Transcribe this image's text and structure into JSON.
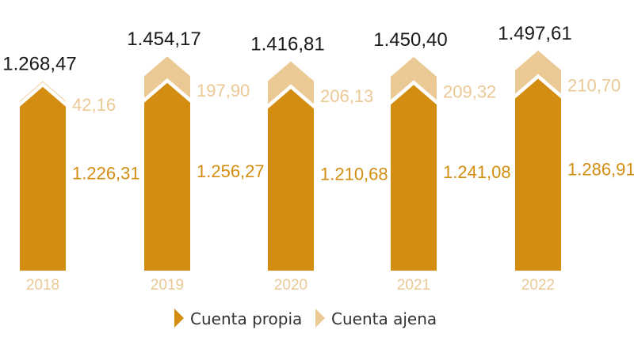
{
  "colors": {
    "propia": "#D38E12",
    "ajena": "#EBC995",
    "year": "#EBC995",
    "total": "#1a1a1a"
  },
  "chart_data": {
    "type": "bar",
    "stacked": true,
    "categories": [
      "2018",
      "2019",
      "2020",
      "2021",
      "2022"
    ],
    "series": [
      {
        "name": "Cuenta propia",
        "values": [
          1226.31,
          1256.27,
          1210.68,
          1241.08,
          1286.91
        ],
        "labels": [
          "1.226,31",
          "1.256,27",
          "1.210,68",
          "1.241,08",
          "1.286,91"
        ]
      },
      {
        "name": "Cuenta ajena",
        "values": [
          42.16,
          197.9,
          206.13,
          209.32,
          210.7
        ],
        "labels": [
          "42,16",
          "197,90",
          "206,13",
          "209,32",
          "210,70"
        ]
      }
    ],
    "totals": [
      1268.47,
      1454.17,
      1416.81,
      1450.4,
      1497.61
    ],
    "total_labels": [
      "1.268,47",
      "1.454,17",
      "1.416,81",
      "1.450,40",
      "1.497,61"
    ],
    "legend": {
      "position": "bottom",
      "items": [
        "Cuenta propia",
        "Cuenta ajena"
      ]
    },
    "grid": false
  }
}
